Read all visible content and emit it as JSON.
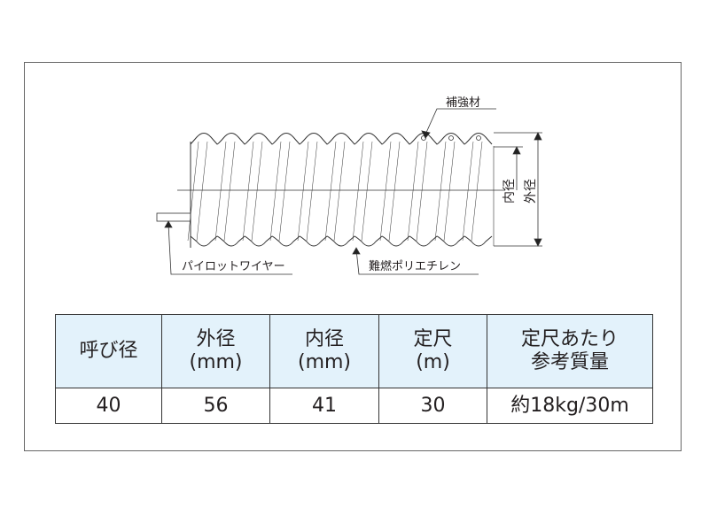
{
  "diagram": {
    "labels": {
      "reinforcement": "補強材",
      "pilot_wire": "パイロットワイヤー",
      "material": "難燃ポリエチレン",
      "inner_diameter": "内径",
      "outer_diameter": "外径"
    }
  },
  "table": {
    "headers": [
      {
        "line1": "呼び径",
        "line2": ""
      },
      {
        "line1": "外径",
        "line2": "(mm)"
      },
      {
        "line1": "内径",
        "line2": "(mm)"
      },
      {
        "line1": "定尺",
        "line2": "(m)"
      },
      {
        "line1": "定尺あたり",
        "line2": "参考質量"
      }
    ],
    "rows": [
      [
        "40",
        "56",
        "41",
        "30",
        "約18kg/30m"
      ]
    ]
  },
  "colors": {
    "header_bg": "#e3f2fb",
    "line": "#231f20"
  }
}
